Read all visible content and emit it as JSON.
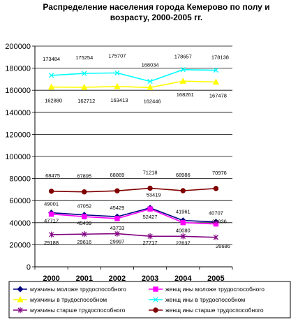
{
  "chart_data": {
    "type": "line",
    "title_lines": [
      "Распределение населения города Кемерово по полу и",
      "возрасту, 2000-2005 гг."
    ],
    "x": [
      "2000",
      "2001",
      "2002",
      "2003",
      "2004",
      "2005"
    ],
    "ylim": [
      0,
      200000
    ],
    "yticks": [
      0,
      20000,
      40000,
      60000,
      80000,
      100000,
      120000,
      140000,
      160000,
      180000,
      200000
    ],
    "ytick_labels": [
      "0",
      "20000",
      "40000",
      "60000",
      "80000",
      "100000",
      "120000",
      "140000",
      "160000",
      "180000",
      "200000"
    ],
    "grid": true,
    "legend_position": "bottom",
    "series": [
      {
        "name": "мужчины моложе трудоспособного",
        "color": "#000080",
        "marker": "diamond",
        "values": [
          49001,
          47052,
          45429,
          53419,
          41961,
          40707
        ],
        "labels": [
          "49001",
          "47052",
          "45429",
          "53419",
          "41961",
          "40707"
        ]
      },
      {
        "name": "женщ ины моложе трудоспособного",
        "color": "#ff00ff",
        "marker": "square",
        "values": [
          47717,
          45439,
          43733,
          52427,
          40080,
          38836
        ],
        "labels": [
          "47717",
          "45439",
          "43733",
          "52427",
          "40080",
          "38836"
        ]
      },
      {
        "name": "мужчины в трудоспособном",
        "color": "#ffff00",
        "marker": "triangle",
        "values": [
          162880,
          162712,
          163413,
          162446,
          168261,
          167478
        ],
        "labels": [
          "162880",
          "162712",
          "163413",
          "162446",
          "168261",
          "167478"
        ]
      },
      {
        "name": "женщ ины в трудоспособном",
        "color": "#00ffff",
        "marker": "x",
        "values": [
          173484,
          175254,
          175707,
          168034,
          178657,
          178138
        ],
        "labels": [
          "173484",
          "175254",
          "175707",
          "168034",
          "178657",
          "178138"
        ]
      },
      {
        "name": "мужчины старше трудоспособного",
        "color": "#800080",
        "marker": "star",
        "values": [
          29188,
          29616,
          29997,
          27717,
          27637,
          26686
        ],
        "labels": [
          "29188",
          "29616",
          "29997",
          "27717",
          "27637",
          "26686"
        ]
      },
      {
        "name": "женщ ины старше трудоспособного",
        "color": "#800000",
        "marker": "circle",
        "values": [
          68475,
          67895,
          68869,
          71218,
          68986,
          70976
        ],
        "labels": [
          "68475",
          "67895",
          "68869",
          "71218",
          "68986",
          "70976"
        ]
      }
    ]
  }
}
